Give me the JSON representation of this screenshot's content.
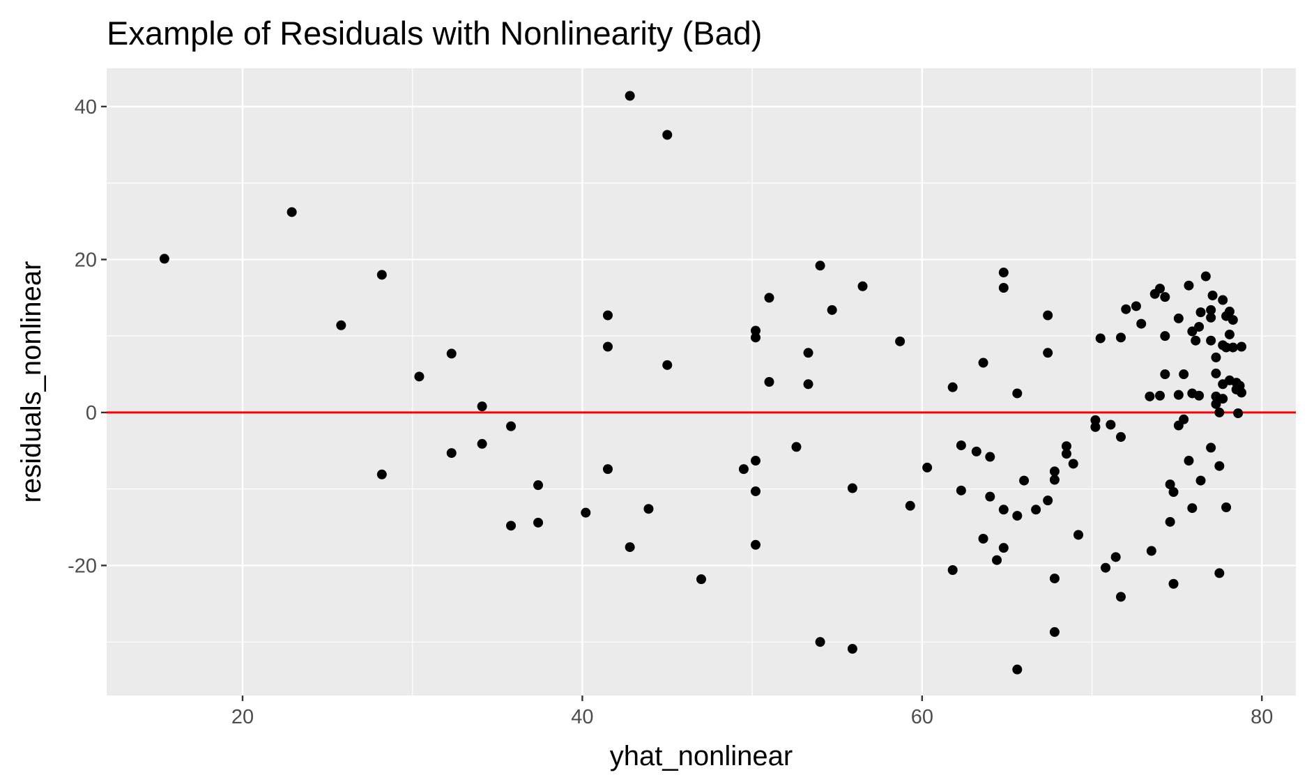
{
  "chart_data": {
    "type": "scatter",
    "title": "Example of Residuals with Nonlinearity (Bad)",
    "xlabel": "yhat_nonlinear",
    "ylabel": "residuals_nonlinear",
    "xlim": [
      12,
      82
    ],
    "ylim": [
      -37,
      45
    ],
    "x_ticks": [
      20,
      40,
      60,
      80
    ],
    "x_tick_labels": [
      "20",
      "40",
      "60",
      "80"
    ],
    "y_ticks": [
      -20,
      0,
      20,
      40
    ],
    "y_tick_labels": [
      "-20",
      "0",
      "20",
      "40"
    ],
    "panel_background": "#ebebeb",
    "point_color": "#000000",
    "reference_line": {
      "y": 0,
      "color": "#ff0000"
    },
    "grid": true,
    "points": [
      [
        15.4,
        20.1
      ],
      [
        22.9,
        26.2
      ],
      [
        25.8,
        11.4
      ],
      [
        28.2,
        18.0
      ],
      [
        28.2,
        -8.1
      ],
      [
        30.4,
        4.7
      ],
      [
        32.3,
        7.7
      ],
      [
        32.3,
        -5.3
      ],
      [
        34.1,
        0.8
      ],
      [
        34.1,
        -4.1
      ],
      [
        35.8,
        -1.8
      ],
      [
        35.8,
        -14.8
      ],
      [
        37.4,
        -9.5
      ],
      [
        37.4,
        -14.4
      ],
      [
        40.2,
        -13.1
      ],
      [
        41.5,
        12.7
      ],
      [
        41.5,
        8.6
      ],
      [
        41.5,
        -7.4
      ],
      [
        42.8,
        41.4
      ],
      [
        42.8,
        -17.6
      ],
      [
        43.9,
        -12.6
      ],
      [
        45.0,
        36.3
      ],
      [
        45.0,
        6.2
      ],
      [
        47.0,
        -21.8
      ],
      [
        49.5,
        -7.4
      ],
      [
        50.2,
        10.7
      ],
      [
        50.2,
        9.8
      ],
      [
        50.2,
        -6.3
      ],
      [
        50.2,
        -10.3
      ],
      [
        50.2,
        -17.3
      ],
      [
        51.0,
        15.0
      ],
      [
        51.0,
        4.0
      ],
      [
        52.6,
        -4.5
      ],
      [
        53.3,
        7.8
      ],
      [
        53.3,
        3.7
      ],
      [
        54.0,
        19.2
      ],
      [
        54.0,
        -30.0
      ],
      [
        54.7,
        13.4
      ],
      [
        55.9,
        -9.9
      ],
      [
        55.9,
        -30.9
      ],
      [
        56.5,
        16.5
      ],
      [
        58.7,
        9.3
      ],
      [
        59.3,
        -12.2
      ],
      [
        60.3,
        -7.2
      ],
      [
        61.8,
        3.3
      ],
      [
        61.8,
        -20.6
      ],
      [
        62.3,
        -4.3
      ],
      [
        62.3,
        -10.2
      ],
      [
        63.2,
        -5.1
      ],
      [
        63.6,
        6.5
      ],
      [
        63.6,
        -16.5
      ],
      [
        64.0,
        -5.8
      ],
      [
        64.0,
        -11.0
      ],
      [
        64.4,
        -19.3
      ],
      [
        64.8,
        18.3
      ],
      [
        64.8,
        16.3
      ],
      [
        64.8,
        -12.7
      ],
      [
        64.8,
        -17.7
      ],
      [
        65.6,
        2.5
      ],
      [
        65.6,
        -13.5
      ],
      [
        65.6,
        -33.6
      ],
      [
        66.0,
        -8.9
      ],
      [
        66.7,
        -12.7
      ],
      [
        67.4,
        12.7
      ],
      [
        67.4,
        7.8
      ],
      [
        67.4,
        -11.5
      ],
      [
        67.8,
        -7.7
      ],
      [
        67.8,
        -8.8
      ],
      [
        67.8,
        -21.7
      ],
      [
        67.8,
        -28.7
      ],
      [
        68.5,
        -4.4
      ],
      [
        68.5,
        -5.4
      ],
      [
        68.9,
        -6.7
      ],
      [
        69.2,
        -16.0
      ],
      [
        70.2,
        -1.0
      ],
      [
        70.2,
        -1.9
      ],
      [
        70.5,
        9.7
      ],
      [
        70.8,
        -20.3
      ],
      [
        71.1,
        -1.6
      ],
      [
        71.4,
        -18.9
      ],
      [
        71.7,
        9.8
      ],
      [
        71.7,
        -3.2
      ],
      [
        71.7,
        -24.1
      ],
      [
        72.0,
        13.5
      ],
      [
        72.6,
        13.9
      ],
      [
        72.9,
        11.6
      ],
      [
        73.4,
        2.1
      ],
      [
        73.5,
        -18.1
      ],
      [
        73.7,
        15.5
      ],
      [
        74.0,
        16.2
      ],
      [
        74.0,
        2.2
      ],
      [
        74.3,
        15.1
      ],
      [
        74.3,
        10.0
      ],
      [
        74.3,
        5.0
      ],
      [
        74.6,
        -9.4
      ],
      [
        74.6,
        -14.3
      ],
      [
        74.8,
        -10.4
      ],
      [
        74.8,
        -22.4
      ],
      [
        75.1,
        12.3
      ],
      [
        75.1,
        2.3
      ],
      [
        75.1,
        -1.7
      ],
      [
        75.4,
        5.0
      ],
      [
        75.4,
        -0.9
      ],
      [
        75.7,
        16.6
      ],
      [
        75.7,
        -6.3
      ],
      [
        75.9,
        10.6
      ],
      [
        75.9,
        2.5
      ],
      [
        75.9,
        -12.5
      ],
      [
        76.1,
        9.4
      ],
      [
        76.3,
        11.2
      ],
      [
        76.3,
        2.2
      ],
      [
        76.4,
        13.1
      ],
      [
        76.4,
        -8.9
      ],
      [
        76.7,
        17.8
      ],
      [
        77.0,
        13.4
      ],
      [
        77.0,
        12.4
      ],
      [
        77.0,
        9.4
      ],
      [
        77.0,
        -4.6
      ],
      [
        77.1,
        15.3
      ],
      [
        77.3,
        7.2
      ],
      [
        77.3,
        5.1
      ],
      [
        77.3,
        2.1
      ],
      [
        77.3,
        1.1
      ],
      [
        77.5,
        0.0
      ],
      [
        77.5,
        -7.0
      ],
      [
        77.5,
        -21.0
      ],
      [
        77.7,
        14.7
      ],
      [
        77.7,
        8.8
      ],
      [
        77.7,
        3.7
      ],
      [
        77.7,
        1.8
      ],
      [
        77.9,
        12.6
      ],
      [
        77.9,
        8.5
      ],
      [
        77.9,
        -12.4
      ],
      [
        78.1,
        13.2
      ],
      [
        78.1,
        10.2
      ],
      [
        78.1,
        4.2
      ],
      [
        78.3,
        12.1
      ],
      [
        78.3,
        8.5
      ],
      [
        78.5,
        3.9
      ],
      [
        78.5,
        3.0
      ],
      [
        78.6,
        -0.1
      ],
      [
        78.7,
        3.5
      ],
      [
        78.8,
        8.6
      ],
      [
        78.8,
        2.6
      ]
    ]
  }
}
